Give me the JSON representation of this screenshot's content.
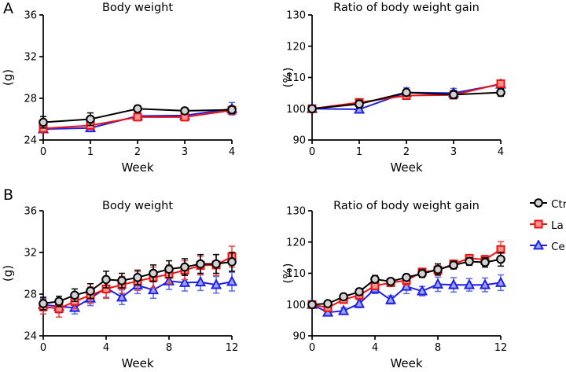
{
  "figure": {
    "panel_a_label": "A",
    "panel_b_label": "B"
  },
  "legend": {
    "items": [
      {
        "label": "Ctrl",
        "marker": "circle",
        "stroke": "#000000",
        "fill": "#d2d2d2"
      },
      {
        "label": "La",
        "marker": "square",
        "stroke": "#ee1111",
        "fill": "#f9928c"
      },
      {
        "label": "Ce",
        "marker": "triangle",
        "stroke": "#2020e6",
        "fill": "#98a6f8"
      }
    ]
  },
  "chart_data": [
    {
      "id": "a-left",
      "type": "line",
      "title": "Body weight",
      "xlabel": "Week",
      "ylabel": "(g)",
      "xlim": [
        0,
        4
      ],
      "ylim": [
        24,
        36
      ],
      "xticks": [
        0,
        1,
        2,
        3,
        4
      ],
      "yticks": [
        24,
        28,
        32,
        36
      ],
      "x": [
        0,
        1,
        2,
        3,
        4
      ],
      "grid": false,
      "series": [
        {
          "name": "Ctrl",
          "marker": "circle",
          "color": "#000000",
          "fill": "#d2d2d2",
          "err_color": "#000000",
          "values": [
            25.7,
            26.0,
            27.0,
            26.8,
            26.9
          ],
          "errors": [
            0.55,
            0.6,
            0.3,
            0.25,
            0.35
          ]
        },
        {
          "name": "La",
          "marker": "square",
          "color": "#ee1111",
          "fill": "#f9928c",
          "err_color": "#f0433d",
          "values": [
            25.1,
            25.4,
            26.2,
            26.2,
            26.85
          ],
          "errors": [
            0.3,
            0.3,
            0.25,
            0.25,
            0.3
          ]
        },
        {
          "name": "Ce",
          "marker": "triangle",
          "color": "#2020e6",
          "fill": "#98a6f8",
          "err_color": "#5a68ee",
          "values": [
            25.05,
            25.15,
            26.3,
            26.35,
            27.0
          ],
          "errors": [
            0.25,
            0.3,
            0.3,
            0.3,
            0.6
          ]
        }
      ]
    },
    {
      "id": "a-right",
      "type": "line",
      "title": "Ratio of body weight gain",
      "xlabel": "Week",
      "ylabel": "(%)",
      "xlim": [
        0,
        4
      ],
      "ylim": [
        90,
        130
      ],
      "xticks": [
        0,
        1,
        2,
        3,
        4
      ],
      "yticks": [
        90,
        100,
        110,
        120,
        130
      ],
      "x": [
        0,
        1,
        2,
        3,
        4
      ],
      "grid": false,
      "series": [
        {
          "name": "Ctrl",
          "marker": "circle",
          "color": "#000000",
          "fill": "#d2d2d2",
          "err_color": "#000000",
          "values": [
            100,
            101.5,
            105.2,
            104.5,
            105.2
          ],
          "errors": [
            0.7,
            1.2,
            1.0,
            1.3,
            1.2
          ]
        },
        {
          "name": "La",
          "marker": "square",
          "color": "#ee1111",
          "fill": "#f9928c",
          "err_color": "#f0433d",
          "values": [
            100,
            102,
            104.2,
            104.4,
            108.0
          ],
          "errors": [
            0.6,
            0.8,
            0.8,
            0.8,
            0.8
          ]
        },
        {
          "name": "Ce",
          "marker": "triangle",
          "color": "#2020e6",
          "fill": "#98a6f8",
          "err_color": "#5a68ee",
          "values": [
            100,
            99.8,
            105.2,
            105.0,
            107.8
          ],
          "errors": [
            0.8,
            1.0,
            1.5,
            1.5,
            0.8
          ]
        }
      ]
    },
    {
      "id": "b-left",
      "type": "line",
      "title": "Body weight",
      "xlabel": "Week",
      "ylabel": "(g)",
      "xlim": [
        0,
        12
      ],
      "ylim": [
        24,
        36
      ],
      "xticks": [
        0,
        4,
        8,
        12
      ],
      "yticks": [
        24,
        28,
        32,
        36
      ],
      "x": [
        0,
        1,
        2,
        3,
        4,
        5,
        6,
        7,
        8,
        9,
        10,
        11,
        12
      ],
      "grid": false,
      "series": [
        {
          "name": "Ctrl",
          "marker": "circle",
          "color": "#000000",
          "fill": "#d2d2d2",
          "err_color": "#000000",
          "values": [
            27.1,
            27.3,
            27.9,
            28.3,
            29.4,
            29.3,
            29.6,
            30.0,
            30.4,
            30.6,
            30.9,
            30.9,
            31.1
          ],
          "errors": [
            0.6,
            0.5,
            0.6,
            0.7,
            0.8,
            0.7,
            0.7,
            0.8,
            0.8,
            0.8,
            0.9,
            0.9,
            0.9
          ]
        },
        {
          "name": "La",
          "marker": "square",
          "color": "#ee1111",
          "fill": "#f9928c",
          "err_color": "#f0433d",
          "values": [
            26.8,
            26.6,
            27.3,
            27.9,
            28.5,
            28.9,
            29.25,
            29.6,
            29.9,
            30.3,
            30.75,
            30.8,
            31.6
          ],
          "errors": [
            0.7,
            0.8,
            0.7,
            0.8,
            0.9,
            0.8,
            0.9,
            1.0,
            0.9,
            0.9,
            0.9,
            1.0,
            1.0
          ]
        },
        {
          "name": "Ce",
          "marker": "triangle",
          "color": "#2020e6",
          "fill": "#98a6f8",
          "err_color": "#5a68ee",
          "values": [
            27.0,
            26.8,
            26.7,
            27.6,
            28.6,
            27.7,
            28.85,
            28.4,
            29.25,
            29.1,
            29.15,
            28.9,
            29.2
          ],
          "errors": [
            0.6,
            0.6,
            0.6,
            0.7,
            0.9,
            0.7,
            0.8,
            0.8,
            0.8,
            0.8,
            0.8,
            0.8,
            0.9
          ]
        }
      ]
    },
    {
      "id": "b-right",
      "type": "line",
      "title": "Ratio of body weight gain",
      "xlabel": "Week",
      "ylabel": "(%)",
      "xlim": [
        0,
        12
      ],
      "ylim": [
        90,
        130
      ],
      "xticks": [
        0,
        4,
        8,
        12
      ],
      "yticks": [
        90,
        100,
        110,
        120,
        130
      ],
      "x": [
        0,
        1,
        2,
        3,
        4,
        5,
        6,
        7,
        8,
        9,
        10,
        11,
        12
      ],
      "grid": false,
      "series": [
        {
          "name": "Ctrl",
          "marker": "circle",
          "color": "#000000",
          "fill": "#d2d2d2",
          "err_color": "#000000",
          "values": [
            100,
            100.3,
            102.5,
            104.1,
            108.1,
            107.4,
            108.7,
            109.9,
            111.2,
            112.6,
            113.8,
            113.5,
            114.5
          ],
          "errors": [
            0.5,
            0.8,
            1.0,
            1.0,
            1.2,
            1.0,
            1.0,
            1.2,
            1.8,
            1.2,
            1.2,
            1.5,
            2.2
          ]
        },
        {
          "name": "La",
          "marker": "square",
          "color": "#ee1111",
          "fill": "#f9928c",
          "err_color": "#f0433d",
          "values": [
            100,
            99,
            101.6,
            103,
            106,
            107,
            107.7,
            110.4,
            111,
            113,
            114.8,
            114.4,
            117.6
          ],
          "errors": [
            0.5,
            0.9,
            1.0,
            1.2,
            1.0,
            1.2,
            1.5,
            1.2,
            1.5,
            1.2,
            1.0,
            1.3,
            2.5
          ]
        },
        {
          "name": "Ce",
          "marker": "triangle",
          "color": "#2020e6",
          "fill": "#98a6f8",
          "err_color": "#5a68ee",
          "values": [
            100,
            97.5,
            98,
            100.3,
            105,
            101.5,
            105.8,
            104.3,
            106.5,
            106.3,
            106.3,
            106.3,
            107
          ],
          "errors": [
            0.5,
            0.9,
            1.0,
            1.3,
            1.5,
            1.3,
            2.3,
            1.5,
            2.3,
            2.3,
            2.0,
            2.2,
            2.5
          ]
        }
      ]
    }
  ]
}
